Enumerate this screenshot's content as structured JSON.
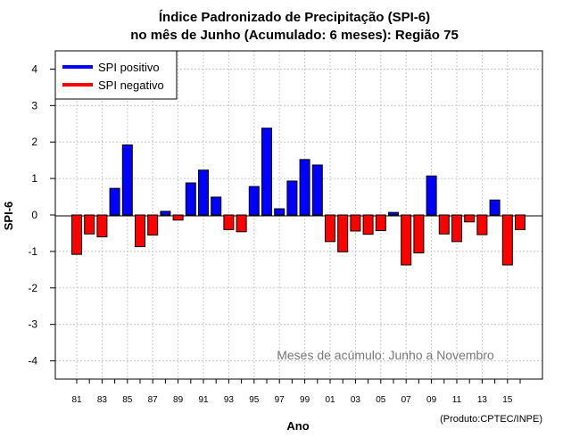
{
  "chart_data": {
    "type": "bar",
    "title_line1": "Índice Padronizado de Precipitação (SPI-6)",
    "title_line2": "no mês de Junho (Acumulado: 6 meses): Região 75",
    "xlabel": "Ano",
    "ylabel": "SPI-6",
    "ylim": [
      -4.5,
      4.5
    ],
    "yticks": [
      -4,
      -3,
      -2,
      -1,
      0,
      1,
      2,
      3,
      4
    ],
    "x_tick_labels": [
      "81",
      "83",
      "85",
      "87",
      "89",
      "91",
      "93",
      "95",
      "97",
      "99",
      "01",
      "03",
      "05",
      "07",
      "09",
      "11",
      "13",
      "15"
    ],
    "categories": [
      "1981",
      "1982",
      "1983",
      "1984",
      "1985",
      "1986",
      "1987",
      "1988",
      "1989",
      "1990",
      "1991",
      "1992",
      "1993",
      "1994",
      "1995",
      "1996",
      "1997",
      "1998",
      "1999",
      "2000",
      "2001",
      "2002",
      "2003",
      "2004",
      "2005",
      "2006",
      "2007",
      "2008",
      "2009",
      "2010",
      "2011",
      "2012",
      "2013",
      "2014",
      "2015",
      "2016"
    ],
    "values": [
      -1.08,
      -0.52,
      -0.6,
      0.73,
      1.92,
      -0.87,
      -0.55,
      0.1,
      -0.14,
      0.88,
      1.23,
      0.49,
      -0.4,
      -0.46,
      0.78,
      2.38,
      0.17,
      0.93,
      1.52,
      1.37,
      -0.73,
      -1.01,
      -0.44,
      -0.53,
      -0.43,
      0.07,
      -1.37,
      -1.04,
      1.07,
      -0.52,
      -0.73,
      -0.19,
      -0.54,
      0.41,
      -1.37,
      -0.4
    ],
    "legend": {
      "position": "top-left",
      "positive": "SPI positivo",
      "negative": "SPI negativo"
    },
    "annotation": "Meses de acúmulo: Junho a Novembro",
    "credit": "(Produto:CPTEC/INPE)",
    "colors": {
      "positive": "#0000ff",
      "negative": "#ff0000",
      "grid": "#c8c8c8",
      "annotation": "#777777"
    },
    "grid": true
  }
}
